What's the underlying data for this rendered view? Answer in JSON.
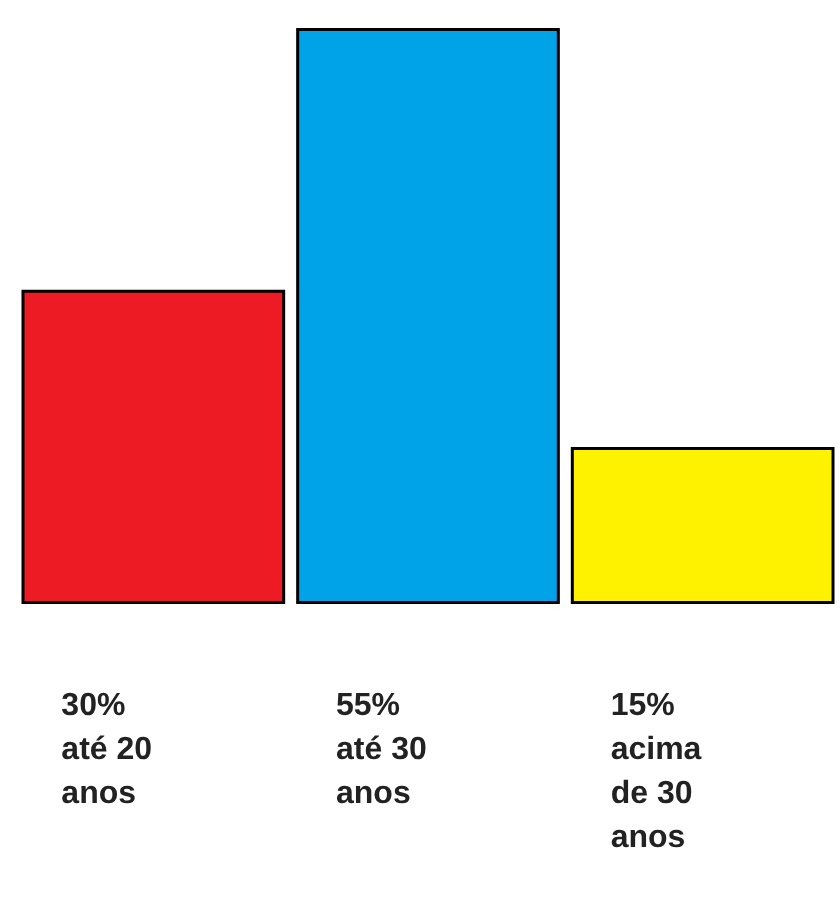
{
  "chart_data": {
    "type": "bar",
    "categories": [
      "até 20 anos",
      "até 30 anos",
      "acima de 30 anos"
    ],
    "values": [
      30,
      55,
      15
    ],
    "colors": [
      "#ed1c24",
      "#00a2e8",
      "#fff200"
    ],
    "value_labels": [
      "30%",
      "55%",
      "15%"
    ]
  }
}
